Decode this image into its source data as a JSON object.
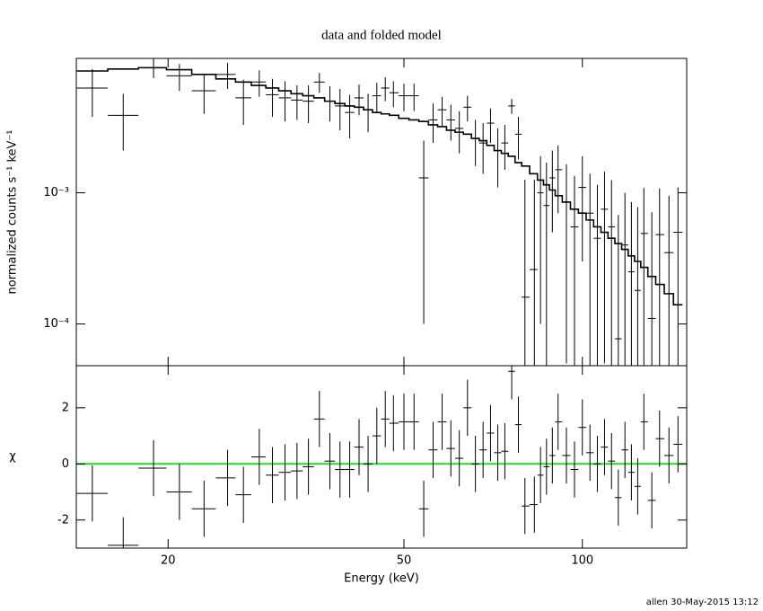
{
  "chart_data": [
    {
      "type": "errorbar",
      "title": "data and folded model",
      "ylabel": "normalized counts s⁻¹ keV⁻¹",
      "xlog": true,
      "ylog": true,
      "xlim": [
        14,
        150
      ],
      "ylim": [
        4.8e-05,
        0.0106
      ],
      "yticks": [
        {
          "value": 0.001,
          "label": "10⁻³"
        },
        {
          "value": 0.0001,
          "label": "10⁻⁴"
        }
      ],
      "color": "#000000",
      "x": [
        14.9,
        16.8,
        18.9,
        20.9,
        23.0,
        25.2,
        26.8,
        28.5,
        30.0,
        31.5,
        33.0,
        34.5,
        36.0,
        37.5,
        39.0,
        40.5,
        42.0,
        43.5,
        45.0,
        46.5,
        48.0,
        50.0,
        52.0,
        54.0,
        56.0,
        58.0,
        60.0,
        62.0,
        64.0,
        66.0,
        68.0,
        70.0,
        72.0,
        74.0,
        76.0,
        78.0,
        80,
        83,
        85,
        87,
        89,
        91,
        94,
        97,
        100,
        103,
        106,
        109,
        112,
        115,
        118,
        121,
        124,
        127,
        131,
        135,
        140,
        145
      ],
      "values": [
        0.0063,
        0.0039,
        0.009,
        0.0078,
        0.006,
        0.008,
        0.0053,
        0.007,
        0.0056,
        0.0053,
        0.0051,
        0.005,
        0.007,
        0.005,
        0.0046,
        0.0041,
        0.0053,
        0.0043,
        0.0055,
        0.0063,
        0.0058,
        0.0055,
        0.0055,
        0.0013,
        0.0036,
        0.0043,
        0.0036,
        0.0031,
        0.0045,
        0.0026,
        0.0024,
        0.0034,
        0.0021,
        0.0024,
        0.0046,
        0.0028,
        0.00016,
        0.00026,
        0.001,
        0.0008,
        0.0013,
        0.0015,
        0.00085,
        0.00055,
        0.0011,
        0.0007,
        0.00045,
        0.00075,
        0.00055,
        7.7e-05,
        0.0004,
        0.00025,
        0.00018,
        0.00049,
        0.00011,
        0.00048,
        0.00035,
        0.0005
      ],
      "errors": [
        0.0025,
        0.0018,
        0.0015,
        0.0018,
        0.002,
        0.0018,
        0.002,
        0.0016,
        0.0018,
        0.0018,
        0.0015,
        0.0016,
        0.0012,
        0.0015,
        0.0016,
        0.0015,
        0.0014,
        0.0014,
        0.0014,
        0.0013,
        0.0013,
        0.0013,
        0.0013,
        0.0012,
        0.0012,
        0.0011,
        0.0011,
        0.0011,
        0.001,
        0.001,
        0.001,
        0.001,
        0.001,
        0.0009,
        0.0006,
        0.001,
        0.0011,
        0.001,
        0.0009,
        0.0009,
        0.0008,
        0.0008,
        0.0008,
        0.0008,
        0.0008,
        0.0007,
        0.0007,
        0.0007,
        0.0007,
        0.0006,
        0.0006,
        0.0006,
        0.0006,
        0.0006,
        0.0006,
        0.0006,
        0.0006,
        0.0006
      ],
      "model": [
        0.0085,
        0.0088,
        0.009,
        0.0087,
        0.008,
        0.0074,
        0.007,
        0.0066,
        0.0063,
        0.006,
        0.0057,
        0.0055,
        0.0053,
        0.005,
        0.0048,
        0.0046,
        0.0045,
        0.0043,
        0.0041,
        0.004,
        0.0039,
        0.0037,
        0.0036,
        0.0035,
        0.0033,
        0.0032,
        0.003,
        0.0029,
        0.0028,
        0.0026,
        0.0025,
        0.0023,
        0.0021,
        0.002,
        0.0019,
        0.0017,
        0.0016,
        0.0014,
        0.00125,
        0.00115,
        0.00105,
        0.00095,
        0.00085,
        0.00075,
        0.0007,
        0.00062,
        0.00055,
        0.0005,
        0.00045,
        0.00041,
        0.00037,
        0.00033,
        0.0003,
        0.00027,
        0.00023,
        0.0002,
        0.00017,
        0.00014
      ]
    },
    {
      "type": "residual",
      "ylabel": "χ",
      "xlabel": "Energy (keV)",
      "xlog": true,
      "xlim": [
        14,
        150
      ],
      "ylim": [
        -3,
        3.5
      ],
      "xticks": [
        20,
        50,
        100
      ],
      "yticks": [
        -2,
        0,
        2
      ],
      "color": "#000000",
      "zero_line_color": "#22dd22",
      "residual_error": 1,
      "values": [
        -1.05,
        -2.9,
        -0.15,
        -1.0,
        -1.6,
        -0.5,
        -1.1,
        0.25,
        -0.4,
        -0.3,
        -0.25,
        -0.1,
        1.6,
        0.1,
        -0.2,
        -0.2,
        0.6,
        0.0,
        1.0,
        1.6,
        1.45,
        1.5,
        1.5,
        -1.6,
        0.5,
        1.5,
        0.55,
        0.2,
        2.0,
        0.0,
        0.5,
        1.1,
        0.4,
        0.45,
        3.3,
        1.4,
        -1.5,
        -1.45,
        -0.4,
        -0.1,
        0.3,
        1.5,
        0.3,
        -0.2,
        1.3,
        0.4,
        0.0,
        0.6,
        0.1,
        -1.2,
        0.5,
        -0.3,
        -0.8,
        1.5,
        -1.3,
        0.9,
        0.3,
        0.7
      ]
    }
  ],
  "footer": "allen 30-May-2015 13:12"
}
